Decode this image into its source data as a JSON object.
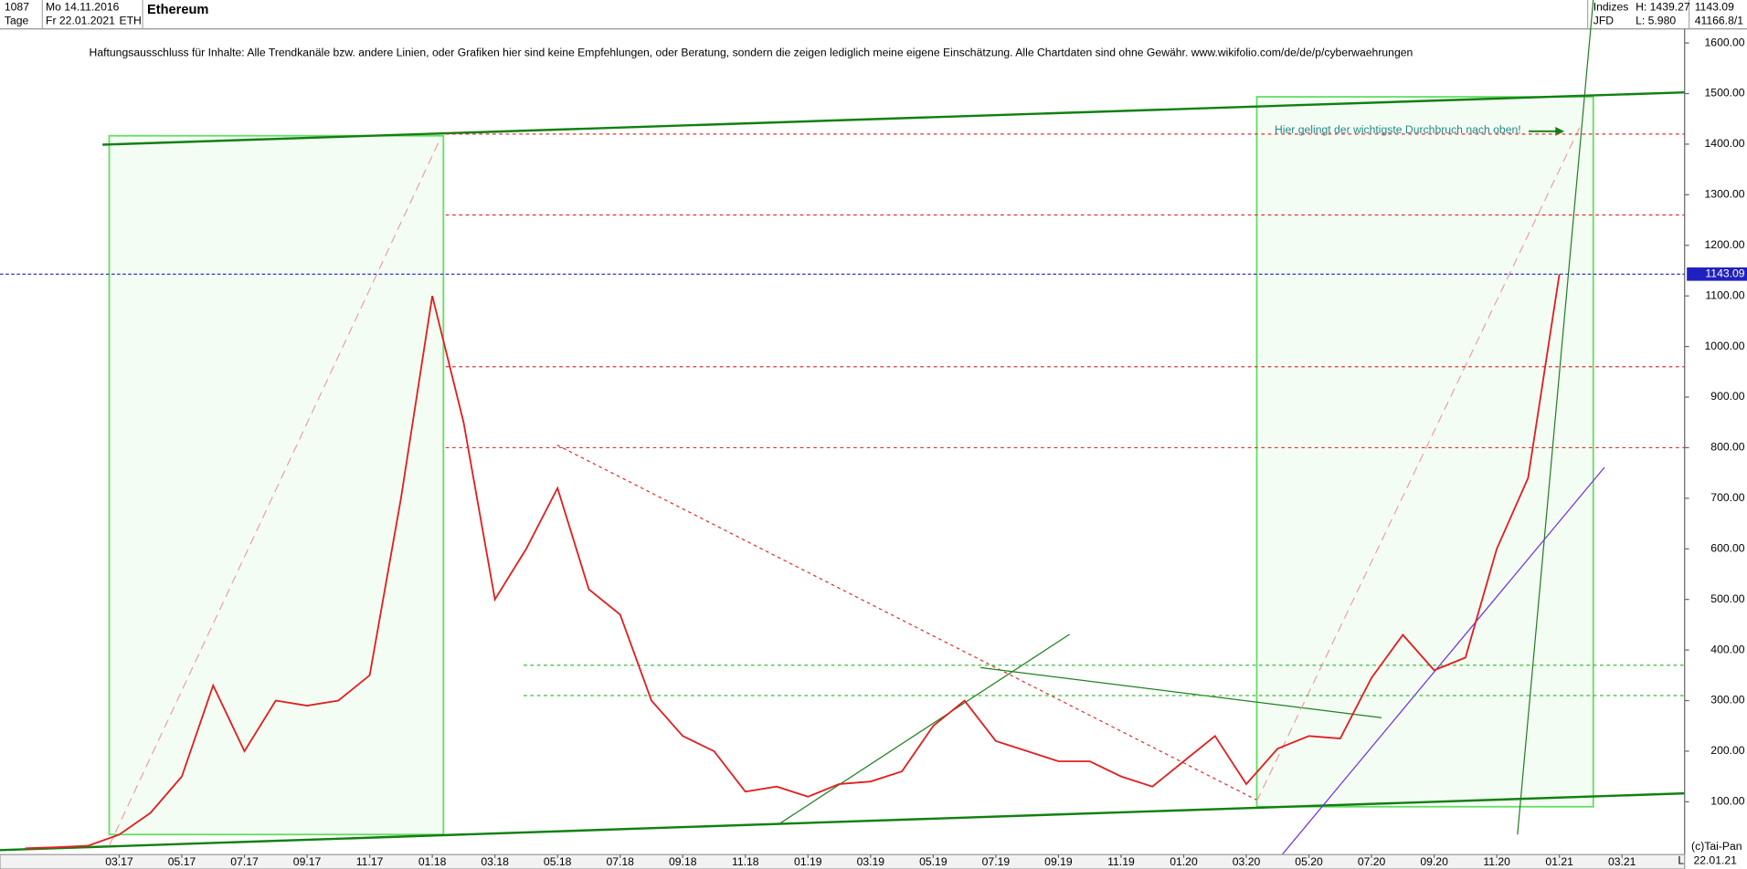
{
  "header": {
    "count": "1087",
    "from": "Mo 14.11.2016",
    "period": "Tage",
    "to": "Fr 22.01.2021",
    "symbol": "ETH",
    "name": "Ethereum",
    "market": "Indizes",
    "broker": "JFD",
    "high": "H: 1439.27",
    "low": "L: 5.980",
    "close": "1143.09",
    "extra": "41166.8/1",
    "disclaimer": "Haftungsausschluss für Inhalte: Alle Trendkanäle bzw. andere Linien, oder Grafiken hier sind keine Empfehlungen, oder Beratung, sondern die zeigen lediglich meine eigene Einschätzung. Alle Chartdaten sind ohne Gewähr.  www.wikifolio.com/de/de/p/cyberwaehrungen",
    "copyright": "(c)Tai-Pan",
    "date": "22.01.21",
    "scale": "L"
  },
  "chart_data": {
    "type": "line",
    "title": "Ethereum",
    "annotation": "Hier gelingt der wichtigste Durchbruch nach oben!",
    "categories": [
      null,
      null,
      null,
      "03.17",
      null,
      "05.17",
      null,
      "07.17",
      null,
      "09.17",
      null,
      "11.17",
      null,
      "01.18",
      null,
      "03.18",
      null,
      "05.18",
      null,
      "07.18",
      null,
      "09.18",
      null,
      "11.18",
      null,
      "01.19",
      null,
      "03.19",
      null,
      "05.19",
      null,
      "07.19",
      null,
      "09.19",
      null,
      "11.19",
      null,
      "01.20",
      null,
      "03.20",
      null,
      "05.20",
      null,
      "07.20",
      null,
      "09.20",
      null,
      "11.20",
      null,
      "01.21",
      null,
      "03.21"
    ],
    "series": [
      {
        "name": "ETH",
        "color": "#e02020",
        "values": [
          8,
          10,
          13,
          35,
          78,
          150,
          330,
          200,
          300,
          290,
          300,
          350,
          700,
          1100,
          850,
          500,
          600,
          720,
          520,
          470,
          300,
          230,
          200,
          120,
          130,
          110,
          135,
          140,
          160,
          250,
          300,
          220,
          200,
          180,
          180,
          150,
          130,
          180,
          230,
          135,
          205,
          230,
          225,
          345,
          430,
          360,
          385,
          600,
          740,
          1143.09,
          null,
          null
        ]
      }
    ],
    "last_price": 1143.09,
    "last_price_color": "#2020c0",
    "resistance": [
      1420,
      1260,
      960,
      800
    ],
    "resistance_color": "#e03030",
    "support": [
      370,
      310
    ],
    "support_color": "#30c030",
    "ylim": [
      0,
      1685
    ],
    "yticks": [
      {
        "value": 100,
        "label": "100.00"
      },
      {
        "value": 200,
        "label": "200.00"
      },
      {
        "value": 300,
        "label": "300.00"
      },
      {
        "value": 400,
        "label": "400.00"
      },
      {
        "value": 500,
        "label": "500.00"
      },
      {
        "value": 600,
        "label": "600.00"
      },
      {
        "value": 700,
        "label": "700.00"
      },
      {
        "value": 800,
        "label": "800.00"
      },
      {
        "value": 900,
        "label": "900.00"
      },
      {
        "value": 1000,
        "label": "1000.00"
      },
      {
        "value": 1100,
        "label": "1100.00"
      },
      {
        "value": 1200,
        "label": "1200.00"
      },
      {
        "value": 1300,
        "label": "1300.00"
      },
      {
        "value": 1400,
        "label": "1400.00"
      },
      {
        "value": 1500,
        "label": "1500.00"
      },
      {
        "value": 1600,
        "label": "1600.00"
      }
    ],
    "grid": false
  }
}
